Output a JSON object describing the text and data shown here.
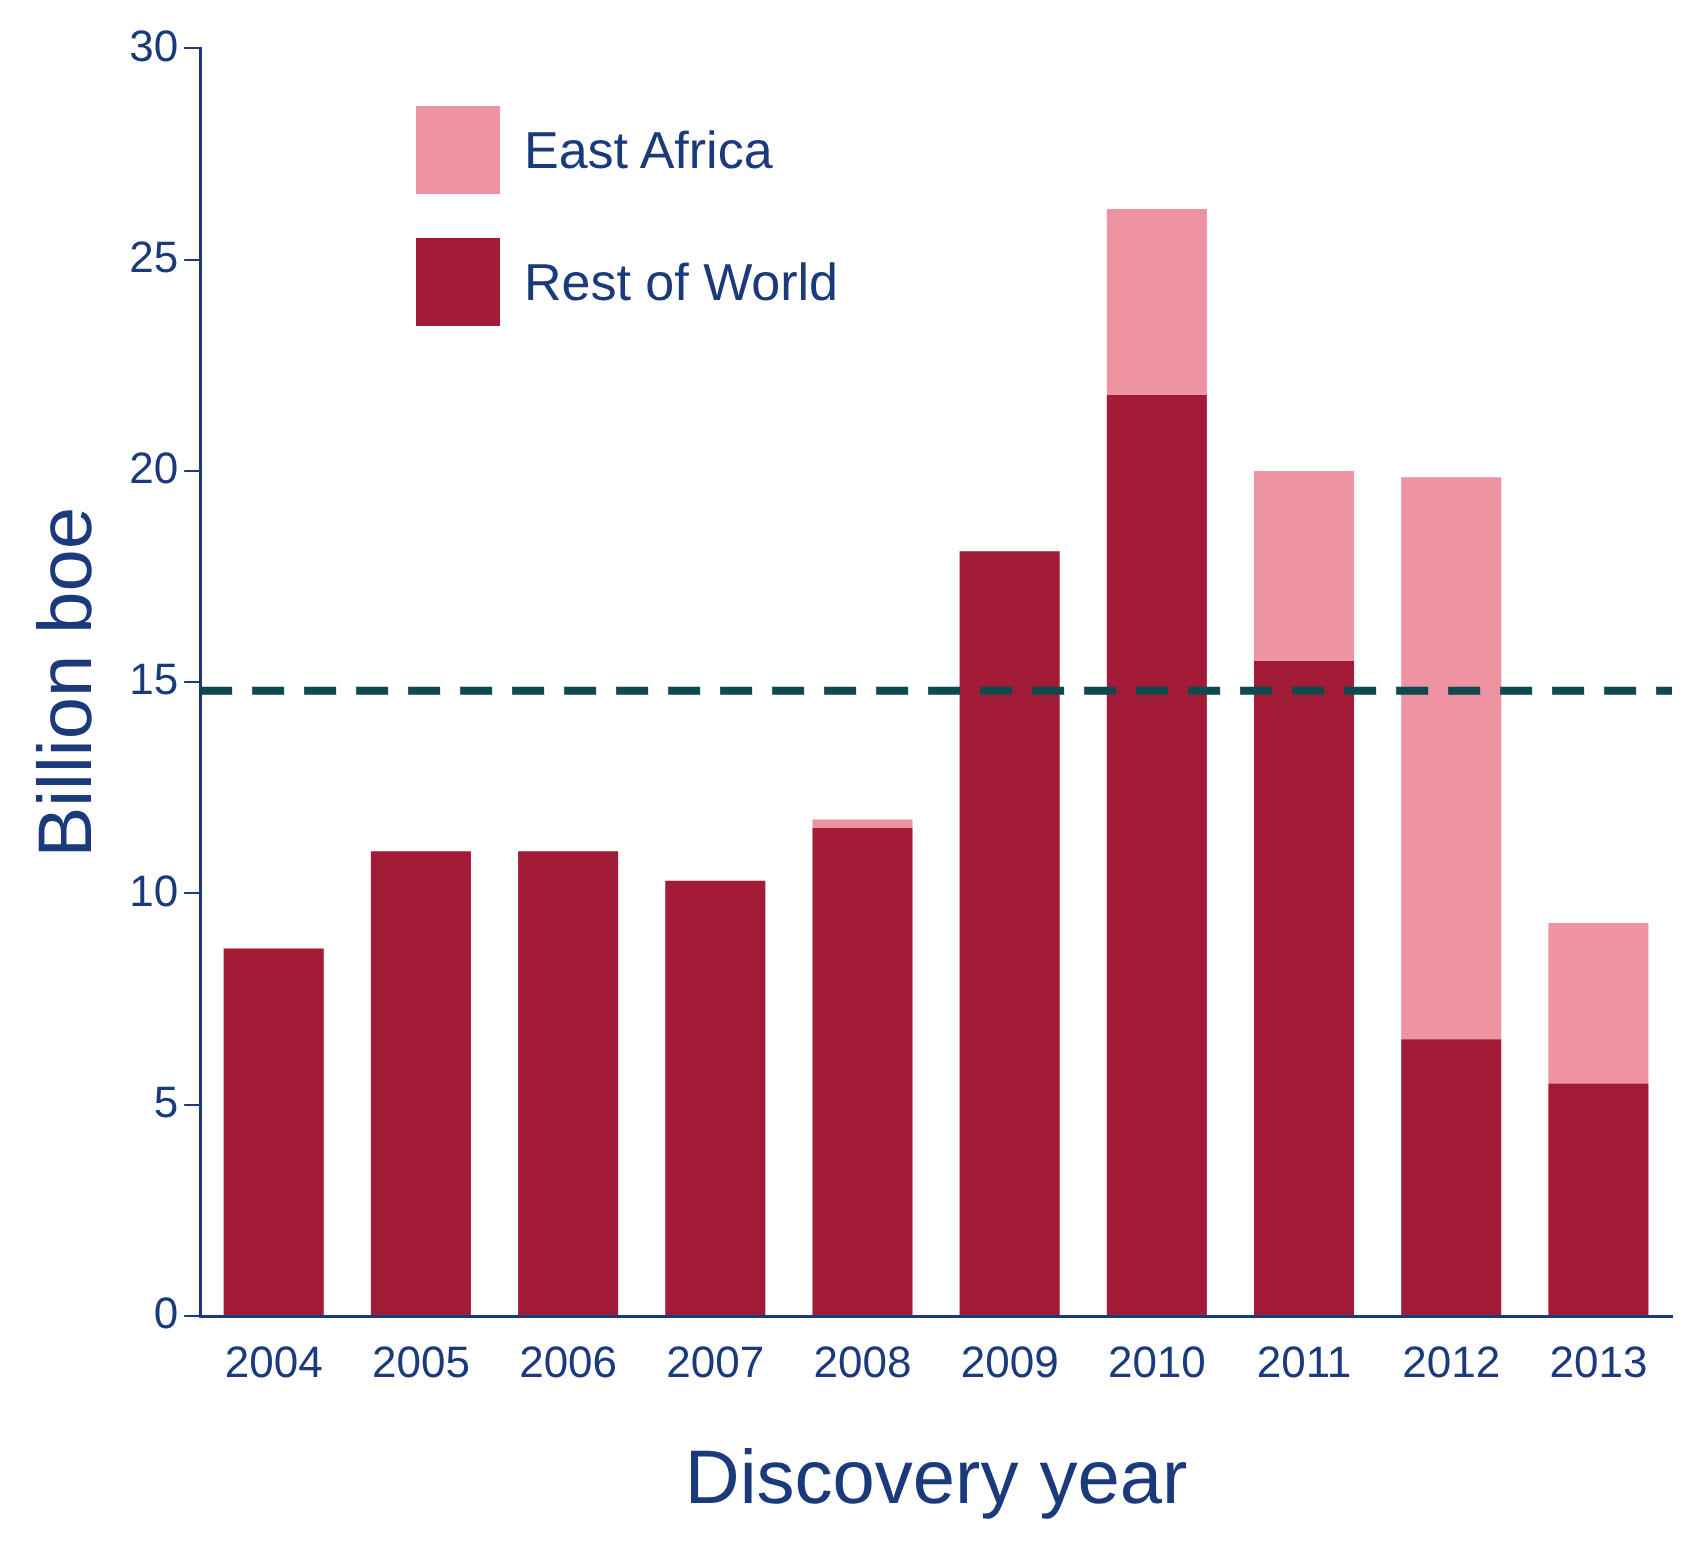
{
  "chart_data": {
    "type": "bar",
    "xlabel": "Discovery year",
    "ylabel": "Billion boe",
    "categories": [
      "2004",
      "2005",
      "2006",
      "2007",
      "2008",
      "2009",
      "2010",
      "2011",
      "2012",
      "2013"
    ],
    "stacked": true,
    "series": [
      {
        "name": "Rest of World",
        "color": "#a31c37",
        "values": [
          8.7,
          11.0,
          11.0,
          10.3,
          11.55,
          18.1,
          21.8,
          15.5,
          6.55,
          5.5
        ]
      },
      {
        "name": "East Africa",
        "color": "#ee93a2",
        "values": [
          0,
          0,
          0,
          0,
          0.2,
          0,
          4.4,
          4.5,
          13.3,
          3.8
        ]
      }
    ],
    "ylim": [
      0,
      30
    ],
    "yticks": [
      0,
      5,
      10,
      15,
      20,
      25,
      30
    ],
    "grid": false,
    "legend": "top left",
    "ref_lines": [
      {
        "axis": "y",
        "value": 14.8,
        "color": "#0d4a4f",
        "line_style": "dashed"
      }
    ]
  }
}
